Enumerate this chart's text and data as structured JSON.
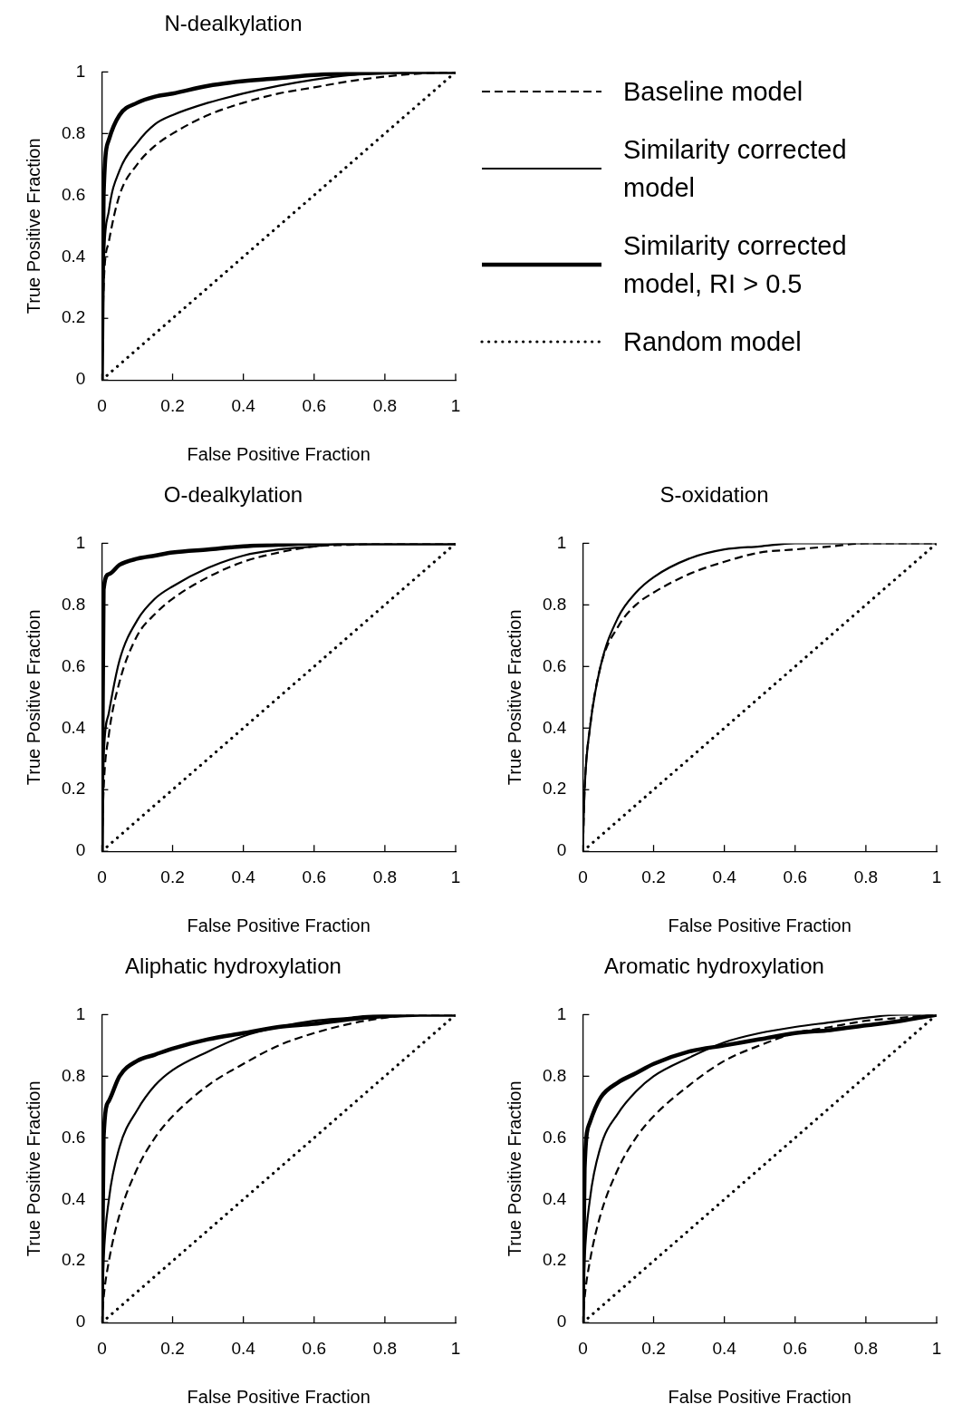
{
  "chart_data": [
    {
      "type": "line",
      "title": "N-dealkylation",
      "xlabel": "False Positive Fraction",
      "ylabel": "True Positive Fraction",
      "legend": "right",
      "xlim": [
        0,
        1
      ],
      "ylim": [
        0,
        1
      ],
      "xticks": [
        0,
        0.2,
        0.4,
        0.6,
        0.8,
        1
      ],
      "yticks": [
        0,
        0.2,
        0.4,
        0.6,
        0.8,
        1
      ],
      "marker": "none",
      "x": [
        0,
        0.005,
        0.02,
        0.05,
        0.1,
        0.15,
        0.2,
        0.3,
        0.4,
        0.5,
        0.6,
        0.7,
        0.8,
        0.9,
        1
      ],
      "series": [
        {
          "name": "Baseline model",
          "color": "#000000",
          "line_style": "dashed",
          "values": [
            0,
            0.3,
            0.45,
            0.6,
            0.7,
            0.76,
            0.8,
            0.86,
            0.9,
            0.93,
            0.95,
            0.97,
            0.985,
            0.995,
            1
          ]
        },
        {
          "name": "Similarity corrected model",
          "color": "#000000",
          "line_style": "solid",
          "values": [
            0,
            0.35,
            0.55,
            0.68,
            0.77,
            0.83,
            0.86,
            0.9,
            0.93,
            0.955,
            0.975,
            0.99,
            0.995,
            1,
            1
          ]
        },
        {
          "name": "Similarity corrected model, RI > 0.5",
          "color": "#000000",
          "line_style": "solid",
          "values": [
            0,
            0.6,
            0.78,
            0.86,
            0.9,
            0.92,
            0.93,
            0.955,
            0.97,
            0.98,
            0.99,
            0.995,
            1,
            1,
            1
          ]
        },
        {
          "name": "Random model",
          "color": "#000000",
          "line_style": "dotted",
          "values": [
            0,
            0.005,
            0.02,
            0.05,
            0.1,
            0.15,
            0.2,
            0.3,
            0.4,
            0.5,
            0.6,
            0.7,
            0.8,
            0.9,
            1
          ]
        }
      ]
    },
    {
      "type": "line",
      "title": "O-dealkylation",
      "xlabel": "False Positive Fraction",
      "ylabel": "True Positive Fraction",
      "xlim": [
        0,
        1
      ],
      "ylim": [
        0,
        1
      ],
      "xticks": [
        0,
        0.2,
        0.4,
        0.6,
        0.8,
        1
      ],
      "yticks": [
        0,
        0.2,
        0.4,
        0.6,
        0.8,
        1
      ],
      "marker": "none",
      "x": [
        0,
        0.005,
        0.02,
        0.05,
        0.1,
        0.15,
        0.2,
        0.3,
        0.4,
        0.5,
        0.6,
        0.7,
        0.8,
        0.9,
        1
      ],
      "series": [
        {
          "color": "#000000",
          "line_style": "dashed",
          "values": [
            0,
            0.2,
            0.38,
            0.55,
            0.7,
            0.77,
            0.82,
            0.89,
            0.94,
            0.97,
            0.99,
            0.995,
            1,
            1,
            1
          ]
        },
        {
          "color": "#000000",
          "line_style": "solid",
          "values": [
            0,
            0.3,
            0.45,
            0.62,
            0.75,
            0.82,
            0.86,
            0.92,
            0.96,
            0.98,
            0.99,
            1,
            1,
            1,
            1
          ]
        },
        {
          "color": "#000000",
          "line_style": "solid",
          "values": [
            0,
            0.85,
            0.9,
            0.93,
            0.95,
            0.96,
            0.97,
            0.98,
            0.99,
            0.995,
            1,
            1,
            1,
            1,
            1
          ]
        },
        {
          "color": "#000000",
          "line_style": "dotted",
          "values": [
            0,
            0.005,
            0.02,
            0.05,
            0.1,
            0.15,
            0.2,
            0.3,
            0.4,
            0.5,
            0.6,
            0.7,
            0.8,
            0.9,
            1
          ]
        }
      ]
    },
    {
      "type": "line",
      "title": "S-oxidation",
      "xlabel": "False Positive Fraction",
      "ylabel": "True Positive Fraction",
      "xlim": [
        0,
        1
      ],
      "ylim": [
        0,
        1
      ],
      "xticks": [
        0,
        0.2,
        0.4,
        0.6,
        0.8,
        1
      ],
      "yticks": [
        0,
        0.2,
        0.4,
        0.6,
        0.8,
        1
      ],
      "marker": "none",
      "x": [
        0,
        0.005,
        0.02,
        0.05,
        0.1,
        0.15,
        0.2,
        0.3,
        0.4,
        0.5,
        0.6,
        0.7,
        0.8,
        0.9,
        1
      ],
      "series": [
        {
          "color": "#000000",
          "line_style": "dashed",
          "values": [
            0,
            0.2,
            0.4,
            0.6,
            0.73,
            0.8,
            0.84,
            0.9,
            0.94,
            0.97,
            0.98,
            0.99,
            1,
            1,
            1
          ]
        },
        {
          "color": "#000000",
          "line_style": "solid",
          "values": [
            0,
            0.2,
            0.4,
            0.6,
            0.76,
            0.84,
            0.89,
            0.95,
            0.98,
            0.99,
            1,
            1,
            1,
            1,
            1
          ]
        },
        {
          "color": "#000000",
          "line_style": "dotted",
          "values": [
            0,
            0.005,
            0.02,
            0.05,
            0.1,
            0.15,
            0.2,
            0.3,
            0.4,
            0.5,
            0.6,
            0.7,
            0.8,
            0.9,
            1
          ]
        }
      ]
    },
    {
      "type": "line",
      "title": "Aliphatic hydroxylation",
      "xlabel": "False Positive Fraction",
      "ylabel": "True Positive Fraction",
      "xlim": [
        0,
        1
      ],
      "ylim": [
        0,
        1
      ],
      "xticks": [
        0,
        0.2,
        0.4,
        0.6,
        0.8,
        1
      ],
      "yticks": [
        0,
        0.2,
        0.4,
        0.6,
        0.8,
        1
      ],
      "marker": "none",
      "x": [
        0,
        0.005,
        0.02,
        0.05,
        0.1,
        0.15,
        0.2,
        0.3,
        0.4,
        0.5,
        0.6,
        0.7,
        0.8,
        0.9,
        1
      ],
      "series": [
        {
          "color": "#000000",
          "line_style": "dashed",
          "values": [
            0,
            0.08,
            0.2,
            0.35,
            0.5,
            0.6,
            0.67,
            0.77,
            0.84,
            0.9,
            0.94,
            0.97,
            0.99,
            1,
            1
          ]
        },
        {
          "color": "#000000",
          "line_style": "solid",
          "values": [
            0,
            0.2,
            0.4,
            0.57,
            0.69,
            0.77,
            0.82,
            0.88,
            0.93,
            0.96,
            0.98,
            0.99,
            1,
            1,
            1
          ]
        },
        {
          "color": "#000000",
          "line_style": "solid",
          "values": [
            0,
            0.6,
            0.72,
            0.8,
            0.85,
            0.87,
            0.89,
            0.92,
            0.94,
            0.96,
            0.97,
            0.985,
            0.995,
            1,
            1
          ]
        },
        {
          "color": "#000000",
          "line_style": "dotted",
          "values": [
            0,
            0.005,
            0.02,
            0.05,
            0.1,
            0.15,
            0.2,
            0.3,
            0.4,
            0.5,
            0.6,
            0.7,
            0.8,
            0.9,
            1
          ]
        }
      ]
    },
    {
      "type": "line",
      "title": "Aromatic hydroxylation",
      "xlabel": "False Positive Fraction",
      "ylabel": "True Positive Fraction",
      "xlim": [
        0,
        1
      ],
      "ylim": [
        0,
        1
      ],
      "xticks": [
        0,
        0.2,
        0.4,
        0.6,
        0.8,
        1
      ],
      "yticks": [
        0,
        0.2,
        0.4,
        0.6,
        0.8,
        1
      ],
      "marker": "none",
      "x": [
        0,
        0.005,
        0.02,
        0.05,
        0.1,
        0.15,
        0.2,
        0.3,
        0.4,
        0.5,
        0.6,
        0.7,
        0.8,
        0.9,
        1
      ],
      "series": [
        {
          "color": "#000000",
          "line_style": "dashed",
          "values": [
            0,
            0.08,
            0.2,
            0.35,
            0.5,
            0.6,
            0.67,
            0.77,
            0.85,
            0.9,
            0.94,
            0.96,
            0.98,
            0.99,
            1
          ]
        },
        {
          "color": "#000000",
          "line_style": "solid",
          "values": [
            0,
            0.2,
            0.4,
            0.57,
            0.68,
            0.75,
            0.8,
            0.86,
            0.91,
            0.94,
            0.96,
            0.975,
            0.99,
            1,
            1
          ]
        },
        {
          "color": "#000000",
          "line_style": "solid",
          "values": [
            0,
            0.5,
            0.65,
            0.73,
            0.78,
            0.81,
            0.84,
            0.88,
            0.9,
            0.92,
            0.94,
            0.95,
            0.965,
            0.98,
            1
          ]
        },
        {
          "color": "#000000",
          "line_style": "dotted",
          "values": [
            0,
            0.005,
            0.02,
            0.05,
            0.1,
            0.15,
            0.2,
            0.3,
            0.4,
            0.5,
            0.6,
            0.7,
            0.8,
            0.9,
            1
          ]
        }
      ]
    }
  ]
}
